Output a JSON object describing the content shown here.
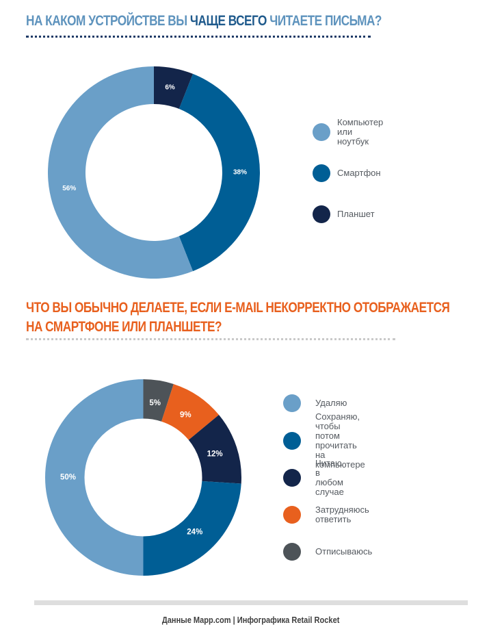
{
  "header": {
    "title_part1": "НА КАКОМ УСТРОЙСТВЕ ВЫ ",
    "title_strong": "ЧАЩЕ ВСЕГО",
    "title_part2": " ЧИТАЕТЕ ПИСЬМА?"
  },
  "section2": {
    "title_line1": "ЧТО ВЫ ОБЫЧНО ДЕЛАЕТЕ, ЕСЛИ E-MAIL НЕКОРРЕКТНО ОТОБРАЖАЕТСЯ",
    "title_line2": "НА СМАРТФОНЕ ИЛИ ПЛАНШЕТЕ?"
  },
  "chart_data": [
    {
      "type": "pie",
      "donut": true,
      "title": "НА КАКОМ УСТРОЙСТВЕ ВЫ ЧАЩЕ ВСЕГО ЧИТАЕТЕ ПИСЬМА?",
      "legend_position": "right",
      "slices": [
        {
          "label": "Планшет",
          "value": 6,
          "display": "6%",
          "color": "#13254a"
        },
        {
          "label": "Смартфон",
          "value": 38,
          "display": "38%",
          "color": "#005e95"
        },
        {
          "label": "Компьютер или ноутбук",
          "value": 56,
          "display": "56%",
          "color": "#6a9fc8"
        }
      ],
      "legend_order": [
        "Компьютер или ноутбук",
        "Смартфон",
        "Планшет"
      ]
    },
    {
      "type": "pie",
      "donut": true,
      "title": "ЧТО ВЫ ОБЫЧНО ДЕЛАЕТЕ, ЕСЛИ E-MAIL НЕКОРРЕКТНО ОТОБРАЖАЕТСЯ НА СМАРТФОНЕ ИЛИ ПЛАНШЕТЕ?",
      "legend_position": "right",
      "slices": [
        {
          "label": "Отписываюсь",
          "value": 5,
          "display": "5%",
          "color": "#4d5358"
        },
        {
          "label": "Затрудняюсь ответить",
          "value": 9,
          "display": "9%",
          "color": "#e8601e"
        },
        {
          "label": "Читаю в любом случае",
          "value": 12,
          "display": "12%",
          "color": "#13254a"
        },
        {
          "label": "Сохраняю, чтобы потом\nпрочитать на компьютере",
          "value": 24,
          "display": "24%",
          "color": "#005e95"
        },
        {
          "label": "Удаляю",
          "value": 50,
          "display": "50%",
          "color": "#6a9fc8"
        }
      ],
      "legend_order": [
        "Удаляю",
        "Сохраняю, чтобы потом\nпрочитать на компьютере",
        "Читаю в любом случае",
        "Затрудняюсь ответить",
        "Отписываюсь"
      ]
    }
  ],
  "footer": {
    "source": "Данные Mapp.com | Инфографика Retail Rocket"
  }
}
